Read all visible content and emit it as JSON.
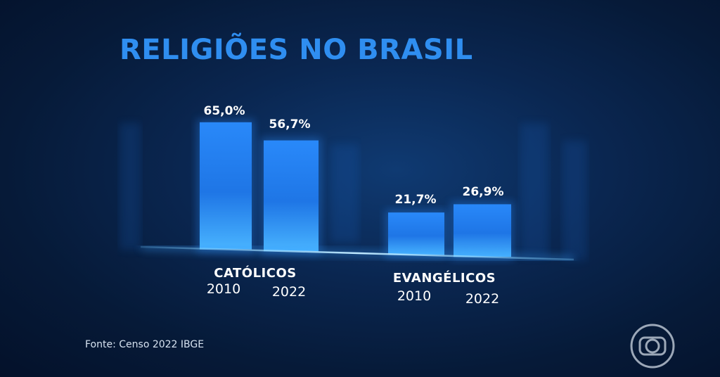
{
  "title": "RELIGIÕES NO BRASIL",
  "source": "Fonte: Censo 2022 IBGE",
  "colors": {
    "title": "#2f8ef0",
    "bar": "#1e7df0",
    "bar_light": "#3fa6ff",
    "baseline": "#6ec4ff"
  },
  "chart_data": {
    "type": "bar",
    "title": "RELIGIÕES NO BRASIL",
    "groups": [
      {
        "name": "CATÓLICOS",
        "bars": [
          {
            "year": "2010",
            "value": 65.0,
            "label": "65,0%"
          },
          {
            "year": "2022",
            "value": 56.7,
            "label": "56,7%"
          }
        ]
      },
      {
        "name": "EVANGÉLICOS",
        "bars": [
          {
            "year": "2010",
            "value": 21.7,
            "label": "21,7%"
          },
          {
            "year": "2022",
            "value": 26.9,
            "label": "26,9%"
          }
        ]
      }
    ],
    "unit": "%",
    "grid": false,
    "legend": "none"
  },
  "logo_icon": "tv-globe-logo-icon"
}
